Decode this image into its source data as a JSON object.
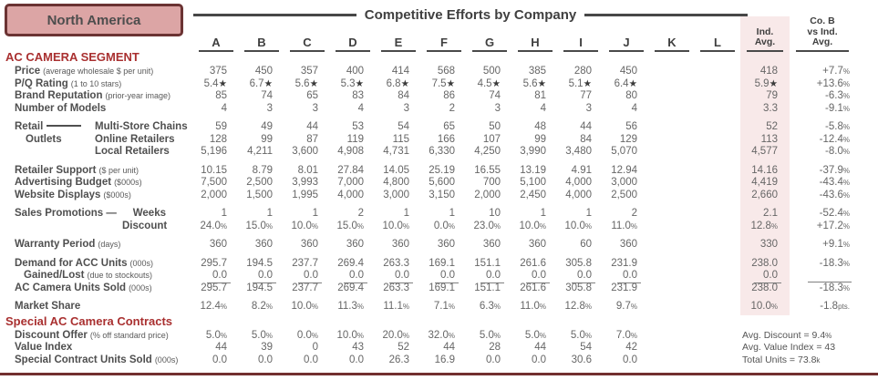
{
  "region": "North America",
  "title": "Competitive Efforts by Company",
  "columns": [
    "A",
    "B",
    "C",
    "D",
    "E",
    "F",
    "G",
    "H",
    "I",
    "J",
    "K",
    "L"
  ],
  "ind_header": [
    "Ind.",
    "Avg."
  ],
  "cob_header": [
    "Co. B",
    "vs Ind.",
    "Avg."
  ],
  "colors": {
    "accent_red": "#A93030",
    "region_fill": "#DCA5A5",
    "region_border": "#6B3333",
    "band_pink": "#F8E9E9",
    "rule_maroon": "#722F2F"
  },
  "sections": [
    {
      "name": "ac-camera-segment",
      "heading": "AC CAMERA SEGMENT",
      "rows": [
        {
          "name": "price",
          "label": "Price",
          "sub": "(average wholesale $ per unit)",
          "values": [
            "375",
            "450",
            "357",
            "400",
            "414",
            "568",
            "500",
            "385",
            "280",
            "450",
            "",
            ""
          ],
          "ind": "418",
          "cob": "+7.7%"
        },
        {
          "name": "pq-rating",
          "label": "P/Q Rating",
          "sub": "(1 to 10 stars)",
          "values": [
            "5.4★",
            "6.7★",
            "5.6★",
            "5.3★",
            "6.8★",
            "7.5★",
            "4.5★",
            "5.6★",
            "5.1★",
            "6.4★",
            "",
            ""
          ],
          "ind": "5.9★",
          "cob": "+13.6%"
        },
        {
          "name": "brand-reputation",
          "label": "Brand Reputation",
          "sub": "(prior-year image)",
          "values": [
            "85",
            "74",
            "65",
            "83",
            "84",
            "86",
            "74",
            "81",
            "77",
            "80",
            "",
            ""
          ],
          "ind": "79",
          "cob": "-6.3%"
        },
        {
          "name": "number-of-models",
          "label": "Number of Models",
          "sub": "",
          "values": [
            "4",
            "3",
            "3",
            "4",
            "3",
            "2",
            "3",
            "4",
            "3",
            "4",
            "",
            ""
          ],
          "ind": "3.3",
          "cob": "-9.1%"
        },
        {
          "spacer": true
        },
        {
          "name": "retail-multi",
          "group": "retail",
          "lead": "Retail",
          "dash": true,
          "label": "Multi-Store Chains",
          "sub": "",
          "values": [
            "59",
            "49",
            "44",
            "53",
            "54",
            "65",
            "50",
            "48",
            "44",
            "56",
            "",
            ""
          ],
          "ind": "52",
          "cob": "-5.8%"
        },
        {
          "name": "retail-online",
          "group": "retail",
          "lead": "Outlets",
          "label": "Online Retailers",
          "sub": "",
          "values": [
            "128",
            "99",
            "87",
            "119",
            "115",
            "166",
            "107",
            "99",
            "84",
            "129",
            "",
            ""
          ],
          "ind": "113",
          "cob": "-12.4%"
        },
        {
          "name": "retail-local",
          "group": "retail",
          "lead": "",
          "label": "Local Retailers",
          "sub": "",
          "values": [
            "5,196",
            "4,211",
            "3,600",
            "4,908",
            "4,731",
            "6,330",
            "4,250",
            "3,990",
            "3,480",
            "5,070",
            "",
            ""
          ],
          "ind": "4,577",
          "cob": "-8.0%"
        },
        {
          "spacer": true
        },
        {
          "name": "retailer-support",
          "label": "Retailer Support",
          "sub": "($ per unit)",
          "values": [
            "10.15",
            "8.79",
            "8.01",
            "27.84",
            "14.05",
            "25.19",
            "16.55",
            "13.19",
            "4.91",
            "12.94",
            "",
            ""
          ],
          "ind": "14.16",
          "cob": "-37.9%"
        },
        {
          "name": "advertising-budget",
          "label": "Advertising Budget",
          "sub": "($000s)",
          "values": [
            "7,500",
            "2,500",
            "3,993",
            "7,000",
            "4,800",
            "5,600",
            "700",
            "5,100",
            "4,000",
            "3,000",
            "",
            ""
          ],
          "ind": "4,419",
          "cob": "-43.4%"
        },
        {
          "name": "website-displays",
          "label": "Website Displays",
          "sub": "($000s)",
          "values": [
            "2,000",
            "1,500",
            "1,995",
            "4,000",
            "3,000",
            "3,150",
            "2,000",
            "2,450",
            "4,000",
            "2,500",
            "",
            ""
          ],
          "ind": "2,660",
          "cob": "-43.6%"
        },
        {
          "spacer": true
        },
        {
          "name": "promo-weeks",
          "group": "promo",
          "lead": "Sales Promotions —",
          "label": "Weeks",
          "sub": "",
          "values": [
            "1",
            "1",
            "1",
            "2",
            "1",
            "1",
            "10",
            "1",
            "1",
            "2",
            "",
            ""
          ],
          "ind": "2.1",
          "cob": "-52.4%"
        },
        {
          "name": "promo-discount",
          "group": "promo",
          "lead": "",
          "label": "Discount",
          "sub": "",
          "values": [
            "24.0%",
            "15.0%",
            "10.0%",
            "15.0%",
            "10.0%",
            "0.0%",
            "23.0%",
            "10.0%",
            "10.0%",
            "11.0%",
            "",
            ""
          ],
          "ind": "12.8%",
          "cob": "+17.2%"
        },
        {
          "spacer": true
        },
        {
          "name": "warranty-period",
          "label": "Warranty Period",
          "sub": "(days)",
          "values": [
            "360",
            "360",
            "360",
            "360",
            "360",
            "360",
            "360",
            "360",
            "60",
            "360",
            "",
            ""
          ],
          "ind": "330",
          "cob": "+9.1%"
        },
        {
          "spacer": true
        },
        {
          "name": "demand-acc-units",
          "label": "Demand for ACC Units",
          "sub": "(000s)",
          "values": [
            "295.7",
            "194.5",
            "237.7",
            "269.4",
            "263.3",
            "169.1",
            "151.1",
            "261.6",
            "305.8",
            "231.9",
            "",
            ""
          ],
          "ind": "238.0",
          "cob": "-18.3%"
        },
        {
          "name": "gained-lost",
          "indent": 2,
          "underline": true,
          "label": "Gained/Lost",
          "sub": "(due to stockouts)",
          "values": [
            "0.0",
            "0.0",
            "0.0",
            "0.0",
            "0.0",
            "0.0",
            "0.0",
            "0.0",
            "0.0",
            "0.0",
            "",
            ""
          ],
          "ind": "0.0",
          "cob": ""
        },
        {
          "name": "units-sold",
          "label": "AC Camera Units Sold",
          "sub": "(000s)",
          "values": [
            "295.7",
            "194.5",
            "237.7",
            "269.4",
            "263.3",
            "169.1",
            "151.1",
            "261.6",
            "305.8",
            "231.9",
            "",
            ""
          ],
          "ind": "238.0",
          "cob": "-18.3%"
        },
        {
          "spacer": true
        },
        {
          "name": "market-share",
          "label": "Market Share",
          "sub": "",
          "values": [
            "12.4%",
            "8.2%",
            "10.0%",
            "11.3%",
            "11.1%",
            "7.1%",
            "6.3%",
            "11.0%",
            "12.8%",
            "9.7%",
            "",
            ""
          ],
          "ind": "10.0%",
          "cob": "-1.8pts."
        }
      ]
    },
    {
      "name": "special-contracts",
      "heading": "Special AC Camera Contracts",
      "rows": [
        {
          "name": "discount-offer",
          "label": "Discount Offer",
          "sub": "(% off standard price)",
          "values": [
            "5.0%",
            "5.0%",
            "0.0%",
            "10.0%",
            "20.0%",
            "32.0%",
            "5.0%",
            "5.0%",
            "5.0%",
            "7.0%",
            "",
            ""
          ],
          "note": "Avg. Discount = 9.4%"
        },
        {
          "name": "value-index",
          "label": "Value Index",
          "sub": "",
          "values": [
            "44",
            "39",
            "0",
            "43",
            "52",
            "44",
            "28",
            "44",
            "54",
            "42",
            "",
            ""
          ],
          "note": "Avg. Value Index = 43"
        },
        {
          "name": "special-units-sold",
          "label": "Special Contract Units Sold",
          "sub": "(000s)",
          "values": [
            "0.0",
            "0.0",
            "0.0",
            "0.0",
            "26.3",
            "16.9",
            "0.0",
            "0.0",
            "30.6",
            "0.0",
            "",
            ""
          ],
          "note": "Total Units = 73.8k"
        }
      ]
    }
  ]
}
